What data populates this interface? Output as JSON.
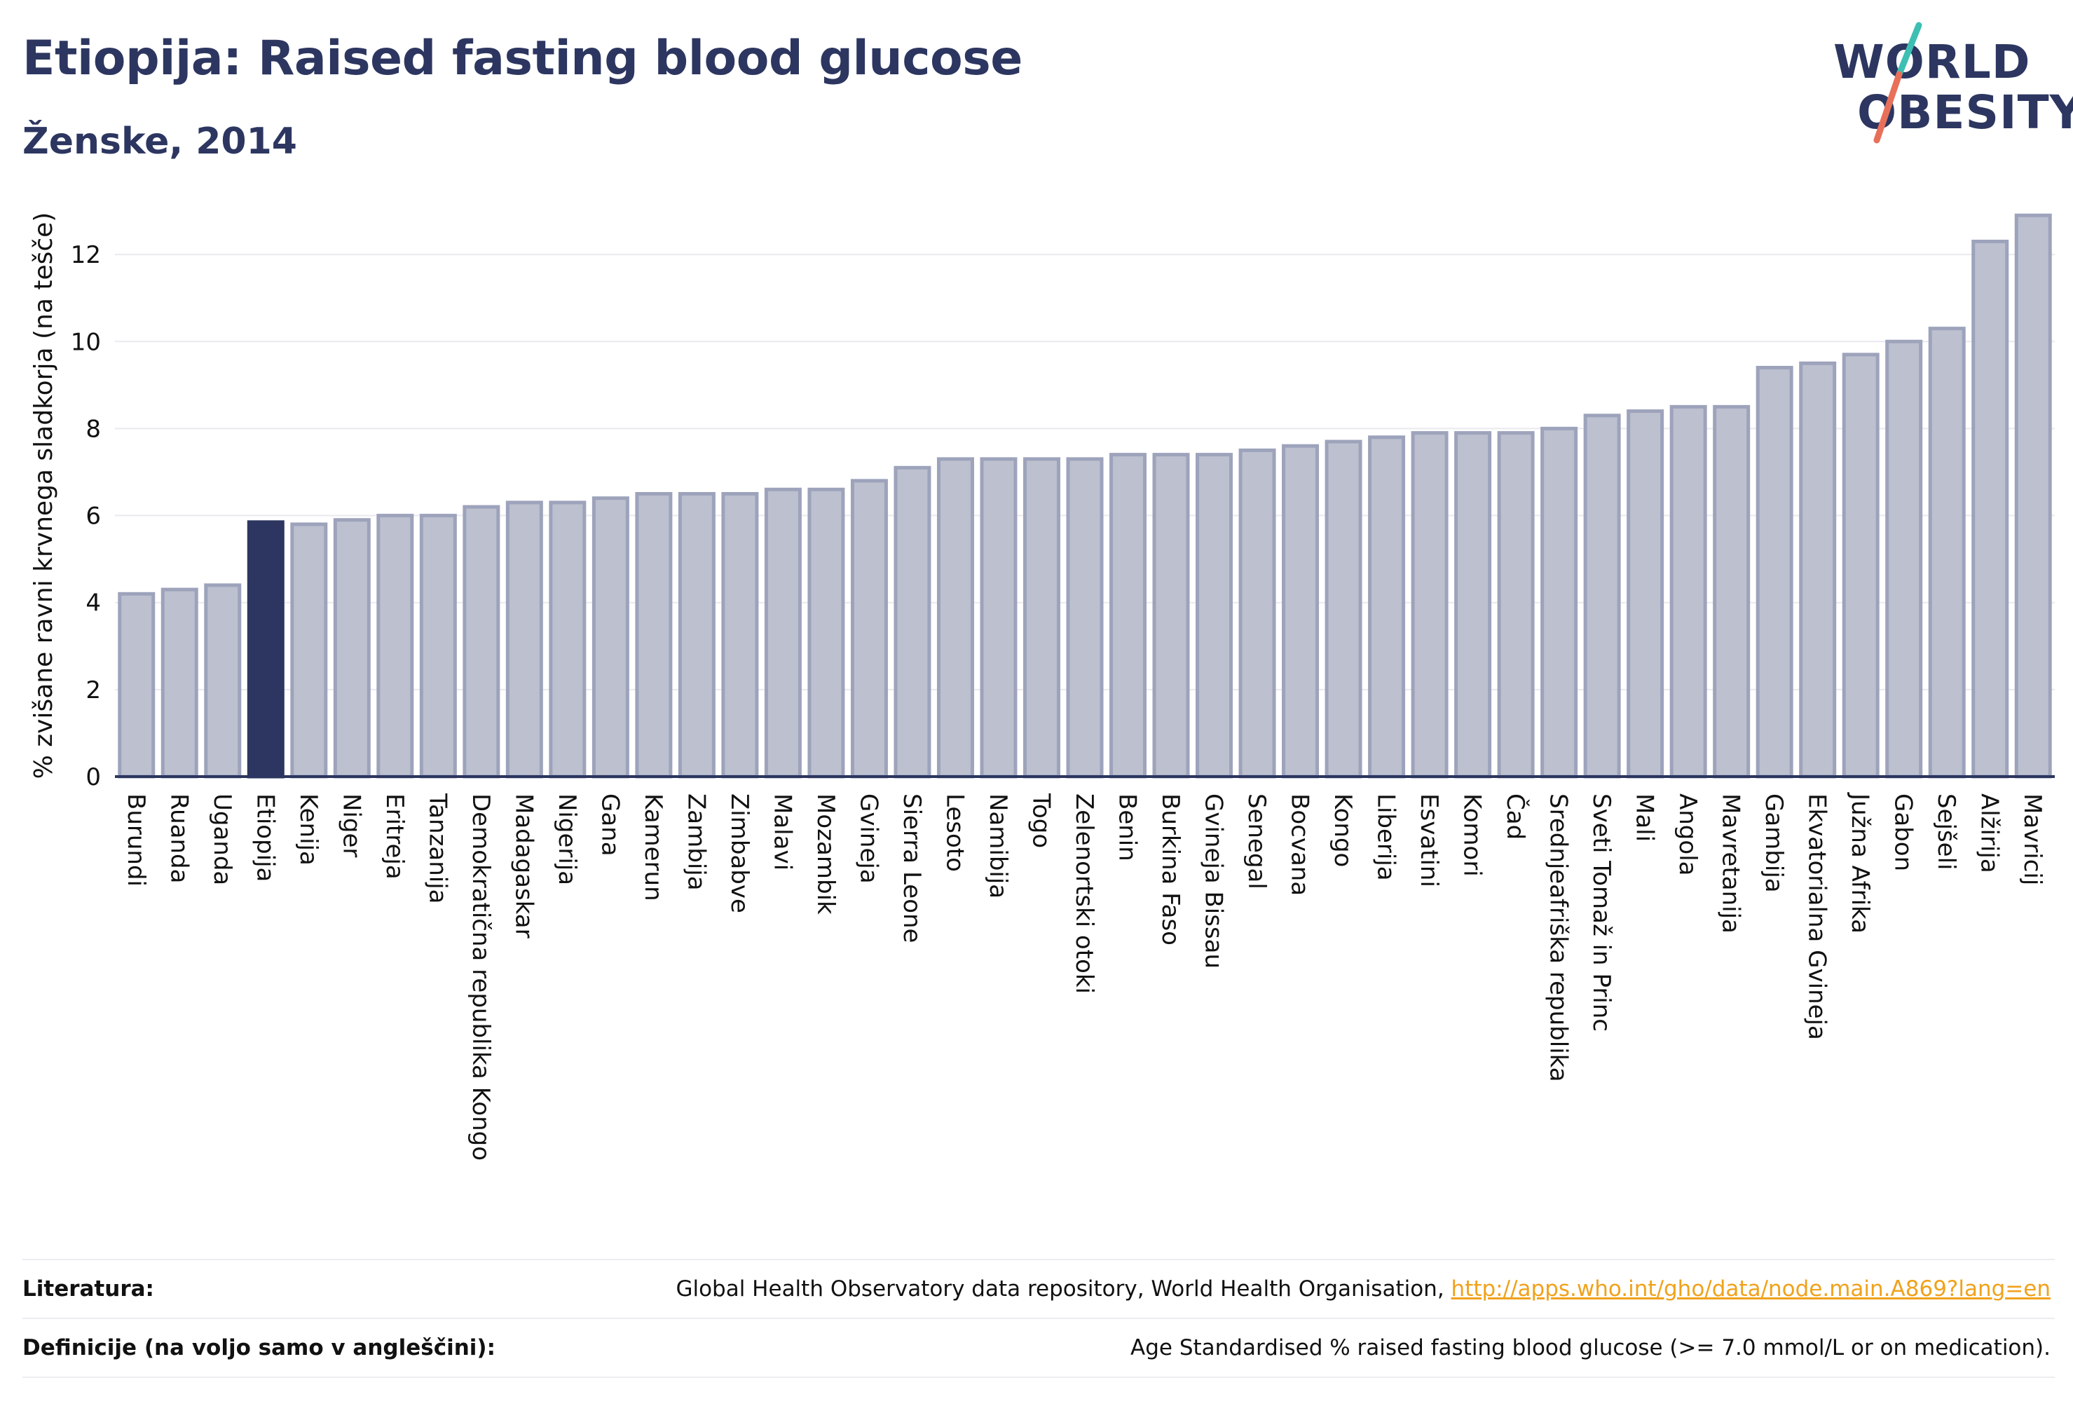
{
  "header": {
    "title": "Etiopija: Raised fasting blood glucose",
    "subtitle": "Ženske, 2014"
  },
  "logo": {
    "line1": "WORLD",
    "line2": "OBESITY",
    "slash_colors": [
      "#3dbfb3",
      "#e8705a"
    ]
  },
  "colors": {
    "highlight": "#2c3660",
    "bar_fill": "#bcc0cf",
    "bar_stroke": "#9da3bb",
    "text": "#2c3660",
    "link": "#f0a21c"
  },
  "chart_data": {
    "type": "bar",
    "ylabel": "% zvišane ravni krvnega sladkorja (na tešče)",
    "ylim": [
      0,
      13.5
    ],
    "yticks": [
      0,
      2,
      4,
      6,
      8,
      10,
      12
    ],
    "highlight": "Etiopija",
    "grid": true,
    "categories": [
      "Burundi",
      "Ruanda",
      "Uganda",
      "Etiopija",
      "Kenija",
      "Niger",
      "Eritreja",
      "Tanzanija",
      "Demokratična republika Kongo",
      "Madagaskar",
      "Nigerija",
      "Gana",
      "Kamerun",
      "Zambija",
      "Zimbabve",
      "Malavi",
      "Mozambik",
      "Gvineja",
      "Sierra Leone",
      "Lesoto",
      "Namibija",
      "Togo",
      "Zelenortski otoki",
      "Benin",
      "Burkina Faso",
      "Gvineja Bissau",
      "Senegal",
      "Bocvana",
      "Kongo",
      "Liberija",
      "Esvatini",
      "Komori",
      "Čad",
      "Srednjeafriška republika",
      "Sveti Tomaž in Princ",
      "Mali",
      "Angola",
      "Mavretanija",
      "Gambija",
      "Ekvatorialna Gvineja",
      "Južna Afrika",
      "Gabon",
      "Sejšeli",
      "Alžirija",
      "Mavricij"
    ],
    "values": [
      4.2,
      4.3,
      4.4,
      5.85,
      5.8,
      5.9,
      6.0,
      6.0,
      6.2,
      6.3,
      6.3,
      6.4,
      6.5,
      6.5,
      6.5,
      6.6,
      6.6,
      6.8,
      7.1,
      7.3,
      7.3,
      7.3,
      7.3,
      7.4,
      7.4,
      7.4,
      7.5,
      7.6,
      7.7,
      7.8,
      7.9,
      7.9,
      7.9,
      8.0,
      8.3,
      8.4,
      8.5,
      8.5,
      9.4,
      9.5,
      9.7,
      10.0,
      10.3,
      12.3,
      12.9
    ]
  },
  "footer": {
    "sources_label": "Literatura:",
    "sources_text": "Global Health Observatory data repository, World Health Organisation, ",
    "sources_link": "http://apps.who.int/gho/data/node.main.A869?lang=en",
    "definition_label": "Definicije (na voljo samo v angleščini):",
    "definition_text": "Age Standardised % raised fasting blood glucose (>= 7.0 mmol/L or on medication)."
  }
}
